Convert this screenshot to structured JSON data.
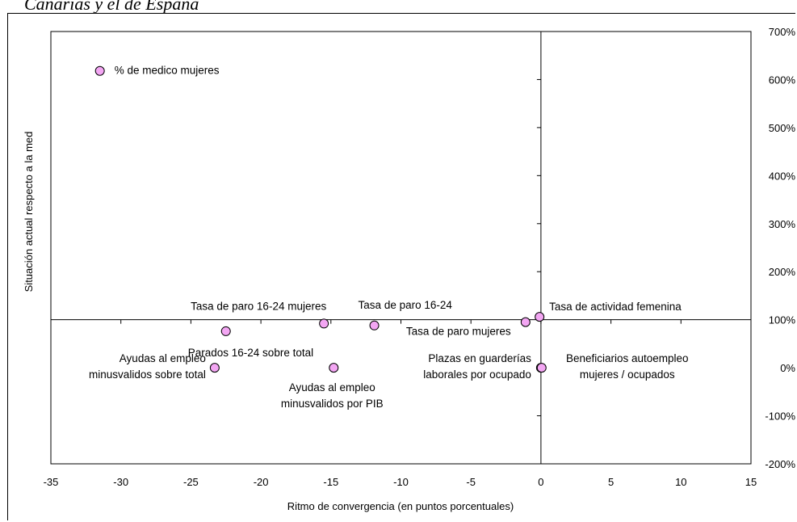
{
  "header": {
    "title_fragment": "Canarias y el de España"
  },
  "chart_data": {
    "type": "scatter",
    "xlabel": "Ritmo de convergencia (en puntos porcentuales)",
    "ylabel": "Situación actual respecto a la med",
    "xlim": [
      -35,
      15
    ],
    "ylim": [
      -200,
      700
    ],
    "x_ticks": [
      "-35",
      "-30",
      "-25",
      "-20",
      "-15",
      "-10",
      "-5",
      "0",
      "5",
      "10",
      "15"
    ],
    "y_ticks": [
      "700%",
      "600%",
      "500%",
      "400%",
      "300%",
      "200%",
      "100%",
      "0%",
      "-100%",
      "-200%"
    ],
    "crosshair": {
      "x": 0,
      "y": 100
    },
    "point_color": "#f3a6f3",
    "points": [
      {
        "x": -31.5,
        "y": 618,
        "label": "% de medico mujeres"
      },
      {
        "x": -22.5,
        "y": 76,
        "label": "Parados 16-24 sobre total"
      },
      {
        "x": -15.5,
        "y": 92,
        "label": "Tasa de paro 16-24 mujeres"
      },
      {
        "x": -11.9,
        "y": 88,
        "label": "Tasa de paro 16-24"
      },
      {
        "x": -1.1,
        "y": 95,
        "label": "Tasa de paro mujeres"
      },
      {
        "x": -0.1,
        "y": 106,
        "label": "Tasa  de actividad femenina"
      },
      {
        "x": -23.3,
        "y": 0,
        "label": "Ayudas al empleo\nminusvalidos sobre total"
      },
      {
        "x": -14.8,
        "y": 0,
        "label": "Ayudas al empleo\nminusvalidos por PIB"
      },
      {
        "x": 0,
        "y": 0,
        "label": "Plazas en guarderías\nlaborales por ocupado"
      },
      {
        "x": 0.05,
        "y": 0,
        "label": "Beneficiarios autoempleo\nmujeres / ocupados"
      }
    ]
  }
}
